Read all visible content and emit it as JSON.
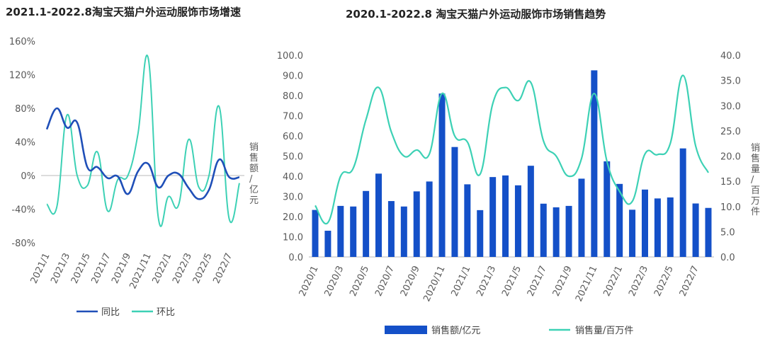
{
  "chart_data": [
    {
      "type": "line",
      "title": "2021.1-2022.8淘宝天猫户外运动服饰市场增速",
      "ylabel": "销售额/亿元",
      "ylim": [
        -80,
        160
      ],
      "yticks": [
        "160%",
        "120%",
        "80%",
        "40%",
        "0%",
        "-40%",
        "-80%"
      ],
      "x": [
        "2021/1",
        "2021/2",
        "2021/3",
        "2021/4",
        "2021/5",
        "2021/6",
        "2021/7",
        "2021/8",
        "2021/9",
        "2021/10",
        "2021/11",
        "2021/12",
        "2022/1",
        "2022/2",
        "2022/3",
        "2022/4",
        "2022/5",
        "2022/6",
        "2022/7",
        "2022/8"
      ],
      "xtick_labels": [
        "2021/1",
        "2021/3",
        "2021/5",
        "2021/7",
        "2021/9",
        "2021/11",
        "2022/1",
        "2022/3",
        "2022/5",
        "2022/7"
      ],
      "grid": false,
      "legend": "bottom",
      "series": [
        {
          "name": "同比",
          "color": "#1f4fb8",
          "values": [
            55,
            80,
            57,
            63,
            10,
            10,
            -3,
            -1,
            -22,
            5,
            14,
            -14,
            0,
            2,
            -15,
            -28,
            -17,
            19,
            -2,
            -2
          ]
        },
        {
          "name": "环比",
          "color": "#3dd1b5",
          "values": [
            -34,
            -37,
            72,
            0,
            -12,
            28,
            -42,
            -5,
            0,
            50,
            140,
            -50,
            -25,
            -35,
            43,
            -14,
            0,
            82,
            -52,
            -9
          ]
        }
      ]
    },
    {
      "type": "bar+line",
      "title": "2020.1-2022.8 淘宝天猫户外运动服饰市场销售趋势",
      "ylabel_right": "销售量/百万件",
      "ylim_left": [
        0,
        100
      ],
      "ylim_right": [
        0,
        40
      ],
      "yticks_left": [
        "100.0",
        "90.0",
        "80.0",
        "70.0",
        "60.0",
        "50.0",
        "40.0",
        "30.0",
        "20.0",
        "10.0",
        "0.0"
      ],
      "yticks_right": [
        "40.0",
        "35.0",
        "30.0",
        "25.0",
        "20.0",
        "15.0",
        "10.0",
        "5.0",
        "0.0"
      ],
      "x": [
        "2020/1",
        "2020/2",
        "2020/3",
        "2020/4",
        "2020/5",
        "2020/6",
        "2020/7",
        "2020/8",
        "2020/9",
        "2020/10",
        "2020/11",
        "2020/12",
        "2021/1",
        "2021/2",
        "2021/3",
        "2021/4",
        "2021/5",
        "2021/6",
        "2021/7",
        "2021/8",
        "2021/9",
        "2021/10",
        "2021/11",
        "2021/12",
        "2022/1",
        "2022/2",
        "2022/3",
        "2022/4",
        "2022/5",
        "2022/6",
        "2022/7",
        "2022/8"
      ],
      "xtick_labels": [
        "2020/1",
        "2020/3",
        "2020/5",
        "2020/7",
        "2020/9",
        "2020/11",
        "2021/1",
        "2021/3",
        "2021/5",
        "2021/7",
        "2021/9",
        "2021/11",
        "2022/1",
        "2022/3",
        "2022/5",
        "2022/7"
      ],
      "grid": false,
      "legend": "bottom",
      "series": [
        {
          "name": "销售额/亿元",
          "type": "bar",
          "axis": "left",
          "color": "#1450c8",
          "values": [
            23.3,
            13,
            25.3,
            25,
            32.7,
            41.3,
            27.7,
            25,
            32.5,
            37.4,
            81,
            54.5,
            36,
            23.2,
            39.6,
            40.4,
            35.5,
            45.2,
            26.4,
            24.6,
            25.3,
            38.8,
            92.5,
            47.4,
            36.2,
            23.4,
            33.4,
            29,
            29.5,
            53.8,
            26.5,
            24.3
          ]
        },
        {
          "name": "销售量/百万件",
          "type": "line",
          "axis": "right",
          "color": "#3dd1b5",
          "values": [
            10.2,
            6.8,
            16,
            17.6,
            27.2,
            33.6,
            24.8,
            20,
            21.2,
            20.4,
            32.4,
            24,
            22.8,
            16.4,
            30.4,
            33.6,
            31,
            34.6,
            23,
            20,
            16,
            19.5,
            32.4,
            19,
            13,
            11,
            20.4,
            20.3,
            22.5,
            36,
            22,
            16.7
          ]
        }
      ]
    }
  ]
}
